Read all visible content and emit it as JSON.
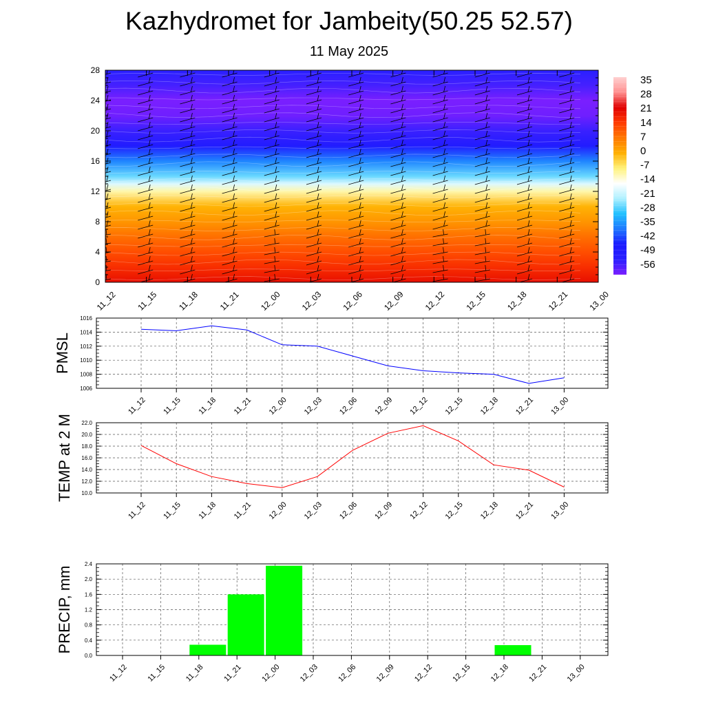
{
  "title": "Kazhydromet for Jambeity(50.25 52.57)",
  "subtitle": "11 May 2025",
  "time_labels": [
    "11_12",
    "11_15",
    "11_18",
    "11_21",
    "12_00",
    "12_03",
    "12_06",
    "12_09",
    "12_12",
    "12_15",
    "12_18",
    "12_21",
    "13_00"
  ],
  "chart_data": [
    {
      "type": "heatmap",
      "x": [
        "11_12",
        "11_15",
        "11_18",
        "11_21",
        "12_00",
        "12_03",
        "12_06",
        "12_09",
        "12_12",
        "12_15",
        "12_18",
        "12_21",
        "13_00"
      ],
      "ylim": [
        0,
        28
      ],
      "yticks": [
        0,
        4,
        8,
        12,
        16,
        20,
        24,
        28
      ],
      "colorbar": {
        "ticks": [
          35,
          28,
          21,
          14,
          7,
          0,
          -7,
          -14,
          -21,
          -28,
          -35,
          -42,
          -49,
          -56
        ],
        "range": [
          -60,
          38
        ],
        "colors": [
          "#7a1fff",
          "#2a20ff",
          "#1a1aff",
          "#1f78ff",
          "#1fc0ff",
          "#aef0ff",
          "#ffffff",
          "#fff27a",
          "#ffb000",
          "#ff7800",
          "#ff3a00",
          "#e00000",
          "#ff9090",
          "#ffd0d0"
        ]
      },
      "temperature_profile": [
        {
          "z": 0,
          "t": 21
        },
        {
          "z": 2,
          "t": 17
        },
        {
          "z": 4,
          "t": 13
        },
        {
          "z": 6,
          "t": 9
        },
        {
          "z": 8,
          "t": 4
        },
        {
          "z": 10,
          "t": 0
        },
        {
          "z": 12,
          "t": -10
        },
        {
          "z": 13,
          "t": -18
        },
        {
          "z": 14,
          "t": -26
        },
        {
          "z": 16,
          "t": -36
        },
        {
          "z": 18,
          "t": -48
        },
        {
          "z": 20,
          "t": -54
        },
        {
          "z": 22,
          "t": -59
        },
        {
          "z": 24,
          "t": -60
        },
        {
          "z": 26,
          "t": -55
        },
        {
          "z": 28,
          "t": -52
        }
      ],
      "wind_barbs": "present",
      "grid": false
    },
    {
      "type": "line",
      "ylabel": "PMSL",
      "x": [
        "11_12",
        "11_15",
        "11_18",
        "11_21",
        "12_00",
        "12_03",
        "12_06",
        "12_09",
        "12_12",
        "12_15",
        "12_18",
        "12_21",
        "13_00"
      ],
      "values": [
        1014.4,
        1014.2,
        1014.9,
        1014.3,
        1012.2,
        1012.0,
        1010.6,
        1009.2,
        1008.5,
        1008.2,
        1008.0,
        1006.7,
        1007.5
      ],
      "ylim": [
        1006,
        1016
      ],
      "yticks": [
        1006,
        1008,
        1010,
        1012,
        1014,
        1016
      ],
      "color": "#0000ff",
      "grid": true
    },
    {
      "type": "line",
      "ylabel": "TEMP at 2 M",
      "x": [
        "11_12",
        "11_15",
        "11_18",
        "11_21",
        "12_00",
        "12_03",
        "12_06",
        "12_09",
        "12_12",
        "12_15",
        "12_18",
        "12_21",
        "13_00"
      ],
      "values": [
        18.1,
        15.0,
        12.8,
        11.6,
        10.9,
        12.8,
        17.3,
        20.2,
        21.5,
        18.9,
        14.8,
        13.9,
        11.0
      ],
      "ylim": [
        10,
        22
      ],
      "yticks": [
        "10.0",
        "12.0",
        "14.0",
        "16.0",
        "18.0",
        "20.0",
        "22.0"
      ],
      "color": "#ff0000",
      "grid": true
    },
    {
      "type": "bar",
      "ylabel": "PRECIP, mm",
      "x": [
        "11_12",
        "11_15",
        "11_18",
        "11_21",
        "12_00",
        "12_03",
        "12_06",
        "12_09",
        "12_12",
        "12_15",
        "12_18",
        "12_21",
        "13_00"
      ],
      "values": [
        0,
        0,
        0.28,
        1.6,
        2.35,
        0,
        0,
        0,
        0,
        0,
        0.27,
        0,
        0
      ],
      "ylim": [
        0,
        2.4
      ],
      "yticks": [
        "0.0",
        "0.4",
        "0.8",
        "1.2",
        "1.6",
        "2.0",
        "2.4"
      ],
      "color": "#00ff00",
      "grid": true
    }
  ]
}
